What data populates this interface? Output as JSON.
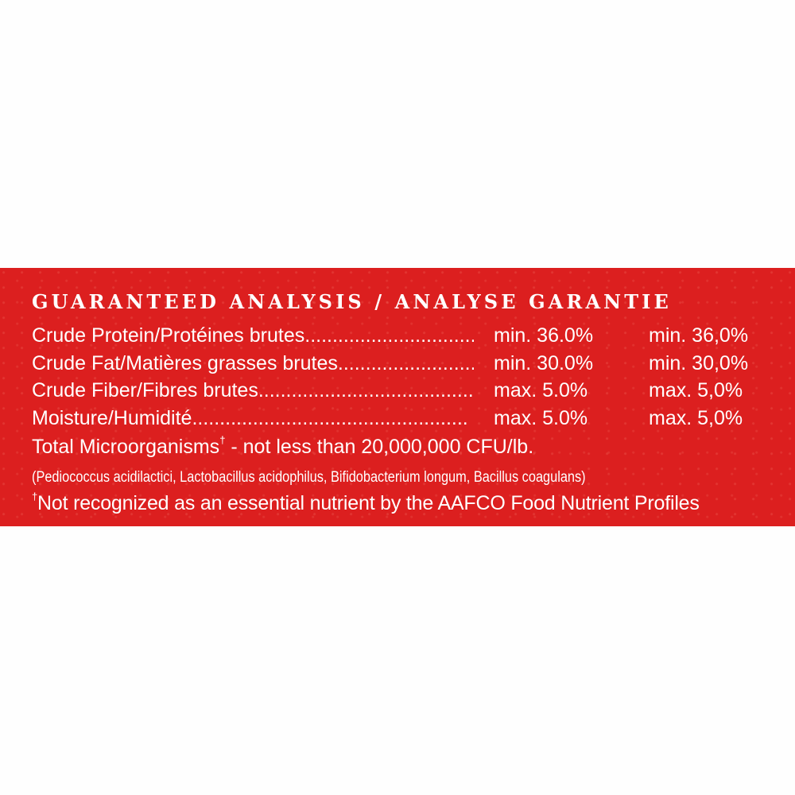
{
  "title": "GUARANTEED ANALYSIS / ANALYSE GARANTIE",
  "rows": [
    {
      "label": "Crude Protein/Protéines brutes",
      "value_en": "min. 36.0%",
      "value_fr": "min. 36,0%"
    },
    {
      "label": "Crude Fat/Matières grasses brutes",
      "value_en": "min. 30.0%",
      "value_fr": "min. 30,0%"
    },
    {
      "label": "Crude Fiber/Fibres brutes",
      "value_en": "max. 5.0%",
      "value_fr": "max. 5,0%"
    },
    {
      "label": "Moisture/Humidité",
      "value_en": "max. 5.0%",
      "value_fr": "max. 5,0%"
    }
  ],
  "microorganisms": {
    "label": "Total Microorganisms",
    "dagger": "†",
    "text": " - not less than 20,000,000 CFU/lb."
  },
  "species": "(Pediococcus acidilactici, Lactobacillus acidophilus, Bifidobacterium longum, Bacillus coagulans)",
  "footnote": {
    "dagger": "†",
    "text": "Not recognized as an essential nutrient by the AAFCO Food Nutrient Profiles"
  },
  "colors": {
    "band": "#dc1f1f",
    "text": "#ffffff",
    "background": "#fefefe"
  }
}
